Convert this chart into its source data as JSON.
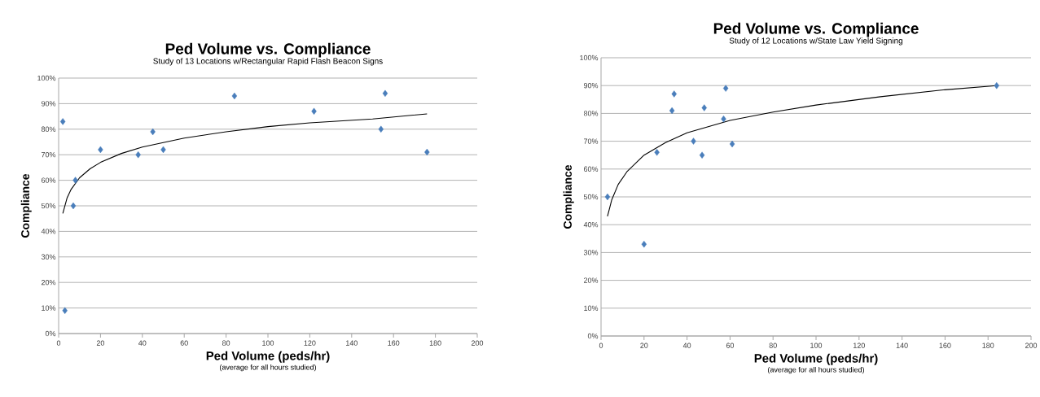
{
  "chart_data": [
    {
      "type": "scatter",
      "title": "Ped Volume vs. Compliance",
      "subtitle": "Study of 13 Locations w/Rectangular Rapid Flash Beacon Signs",
      "xlabel": "Ped Volume (peds/hr)",
      "ylabel": "Compliance",
      "annotations": [
        "(average for all hours studied)"
      ],
      "xlim": [
        0,
        200
      ],
      "xticks": [
        0,
        20,
        40,
        60,
        80,
        100,
        120,
        140,
        160,
        180,
        200
      ],
      "ylim": [
        0,
        100
      ],
      "yticks": [
        {
          "value": 0,
          "label": "0%"
        },
        {
          "value": 10,
          "label": "10%"
        },
        {
          "value": 20,
          "label": "20%"
        },
        {
          "value": 30,
          "label": "30%"
        },
        {
          "value": 40,
          "label": "40%"
        },
        {
          "value": 50,
          "label": "50%"
        },
        {
          "value": 60,
          "label": "60%"
        },
        {
          "value": 70,
          "label": "70%"
        },
        {
          "value": 80,
          "label": "80%"
        },
        {
          "value": 90,
          "label": "90%"
        },
        {
          "value": 100,
          "label": "100%"
        }
      ],
      "grid": "y",
      "series": [
        {
          "marker": "diamond",
          "color": "#4a7ebb",
          "x": [
            2,
            3,
            7,
            8,
            20,
            38,
            45,
            50,
            84,
            122,
            154,
            156,
            176
          ],
          "values": [
            83,
            9,
            50,
            60,
            72,
            70,
            79,
            72,
            93,
            87,
            80,
            94,
            71
          ]
        },
        {
          "type": "line",
          "color": "#000000",
          "x": [
            2,
            4,
            6,
            10,
            15,
            20,
            30,
            40,
            60,
            80,
            100,
            120,
            150,
            176
          ],
          "values": [
            47,
            53,
            56.5,
            61,
            64.5,
            67,
            70.5,
            73,
            76.5,
            79,
            81,
            82.5,
            84,
            86
          ]
        }
      ]
    },
    {
      "type": "scatter",
      "title": "Ped Volume vs. Compliance",
      "subtitle": "Study of 12 Locations w/State Law Yield Signing",
      "xlabel": "Ped Volume (peds/hr)",
      "ylabel": "Compliance",
      "annotations": [
        "(average for all hours studied)"
      ],
      "xlim": [
        0,
        200
      ],
      "xticks": [
        0,
        20,
        40,
        60,
        80,
        100,
        120,
        140,
        160,
        180,
        200
      ],
      "ylim": [
        0,
        100
      ],
      "yticks": [
        {
          "value": 0,
          "label": "0%"
        },
        {
          "value": 10,
          "label": "10%"
        },
        {
          "value": 20,
          "label": "20%"
        },
        {
          "value": 30,
          "label": "30%"
        },
        {
          "value": 40,
          "label": "40%"
        },
        {
          "value": 50,
          "label": "50%"
        },
        {
          "value": 60,
          "label": "60%"
        },
        {
          "value": 70,
          "label": "70%"
        },
        {
          "value": 80,
          "label": "80%"
        },
        {
          "value": 90,
          "label": "90%"
        },
        {
          "value": 100,
          "label": "100%"
        }
      ],
      "grid": "y",
      "series": [
        {
          "marker": "diamond",
          "color": "#4a7ebb",
          "x": [
            3,
            20,
            26,
            33,
            34,
            43,
            47,
            48,
            57,
            58,
            61,
            184
          ],
          "values": [
            50,
            33,
            66,
            81,
            87,
            70,
            65,
            82,
            78,
            89,
            69,
            90
          ]
        },
        {
          "type": "line",
          "color": "#000000",
          "x": [
            3,
            5,
            8,
            12,
            20,
            30,
            40,
            60,
            80,
            100,
            130,
            160,
            184
          ],
          "values": [
            43,
            49,
            54.5,
            59,
            65,
            69.5,
            73,
            77.5,
            80.5,
            83,
            86,
            88.5,
            90
          ]
        }
      ]
    }
  ]
}
